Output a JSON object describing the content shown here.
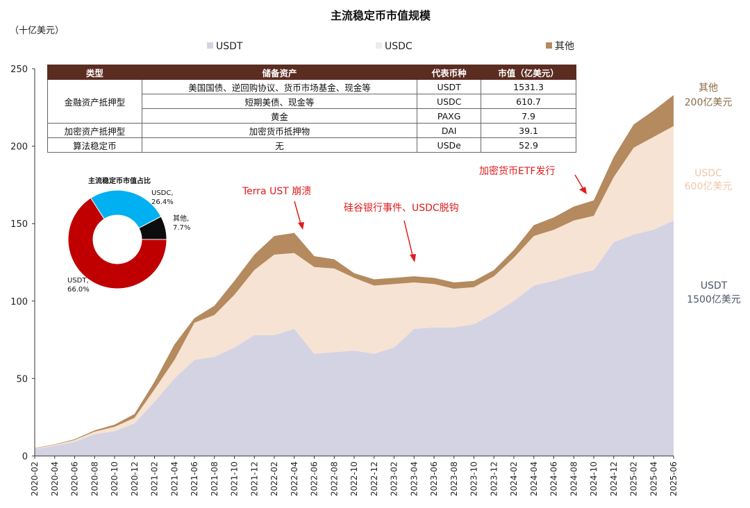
{
  "chart_data": [
    {
      "type": "area",
      "stacked": true,
      "title": "主流稳定币市值规模",
      "ylabel": "（十亿美元）",
      "ylim": [
        0,
        250
      ],
      "yticks": [
        0,
        50,
        100,
        150,
        200,
        250
      ],
      "grid": false,
      "legend_position": "top",
      "x": [
        "2020-02",
        "2020-04",
        "2020-06",
        "2020-08",
        "2020-10",
        "2020-12",
        "2021-02",
        "2021-04",
        "2021-06",
        "2021-08",
        "2021-10",
        "2021-12",
        "2022-02",
        "2022-04",
        "2022-06",
        "2022-08",
        "2022-10",
        "2022-12",
        "2023-02",
        "2023-04",
        "2023-06",
        "2023-08",
        "2023-10",
        "2023-12",
        "2024-02",
        "2024-04",
        "2024-06",
        "2024-08",
        "2024-10",
        "2024-12",
        "2025-02",
        "2025-04",
        "2025-06"
      ],
      "series": [
        {
          "name": "USDT",
          "color": "#d3d3e4",
          "values": [
            4.5,
            6.5,
            9.2,
            14,
            16,
            21,
            35,
            50,
            62,
            64,
            70,
            78,
            78,
            82,
            66,
            67,
            68,
            66,
            70,
            82,
            83,
            83,
            85,
            92,
            100,
            110,
            113,
            117,
            120,
            138,
            143,
            146,
            152
          ]
        },
        {
          "name": "USDC",
          "color": "#f7e3d3",
          "values": [
            0.4,
            0.7,
            1.1,
            1.7,
            2.8,
            3.6,
            8,
            12,
            24,
            27,
            34,
            42,
            52,
            49,
            56,
            54,
            47,
            44,
            41,
            30,
            28,
            25,
            24,
            24,
            28,
            32,
            33,
            35,
            35,
            42,
            56,
            60,
            61
          ]
        },
        {
          "name": "其他",
          "color": "#b48a5e",
          "values": [
            0.2,
            0.3,
            0.5,
            0.8,
            1.4,
            2.5,
            5,
            10,
            3,
            6,
            9,
            10,
            12,
            13,
            7,
            6,
            3,
            4,
            4,
            4,
            4,
            4,
            4,
            4,
            5,
            7,
            8,
            9,
            10,
            13,
            15,
            17,
            20
          ]
        }
      ],
      "annotations": [
        {
          "text": "Terra UST 崩溃",
          "x": "2022-04"
        },
        {
          "text": "硅谷银行事件、USDC脱钩",
          "x": "2023-03"
        },
        {
          "text": "加密货币ETF发行",
          "x": "2024-08"
        }
      ],
      "series_labels": [
        {
          "series": "其他",
          "lines": [
            "其他",
            "200亿美元"
          ]
        },
        {
          "series": "USDC",
          "lines": [
            "USDC",
            "600亿美元"
          ]
        },
        {
          "series": "USDT",
          "lines": [
            "USDT",
            "1500亿美元"
          ]
        }
      ]
    },
    {
      "type": "pie",
      "title": "主流稳定币市值占比",
      "donut": true,
      "slices": [
        {
          "label": "USDT,",
          "pct_text": "66.0%",
          "value": 66.0,
          "color": "#c00000"
        },
        {
          "label": "USDC,",
          "pct_text": "26.4%",
          "value": 26.4,
          "color": "#00b0f0"
        },
        {
          "label": "其他,",
          "pct_text": "7.7%",
          "value": 7.7,
          "color": "#0d0d0d"
        }
      ]
    },
    {
      "type": "table",
      "headers": [
        "类型",
        "储备资产",
        "代表币种",
        "市值（亿美元）"
      ],
      "rows": [
        {
          "group": "金融资产抵押型",
          "reserve": "美国国债、逆回购协议、货币市场基金、现金等",
          "coin": "USDT",
          "cap": "1531.3"
        },
        {
          "group": "",
          "reserve": "短期美债、现金等",
          "coin": "USDC",
          "cap": "610.7"
        },
        {
          "group": "",
          "reserve": "黄金",
          "coin": "PAXG",
          "cap": "7.9"
        },
        {
          "group": "加密资产抵押型",
          "reserve": "加密货币抵押物",
          "coin": "DAI",
          "cap": "39.1"
        },
        {
          "group": "算法稳定币",
          "reserve": "无",
          "coin": "USDe",
          "cap": "52.9"
        }
      ]
    }
  ]
}
